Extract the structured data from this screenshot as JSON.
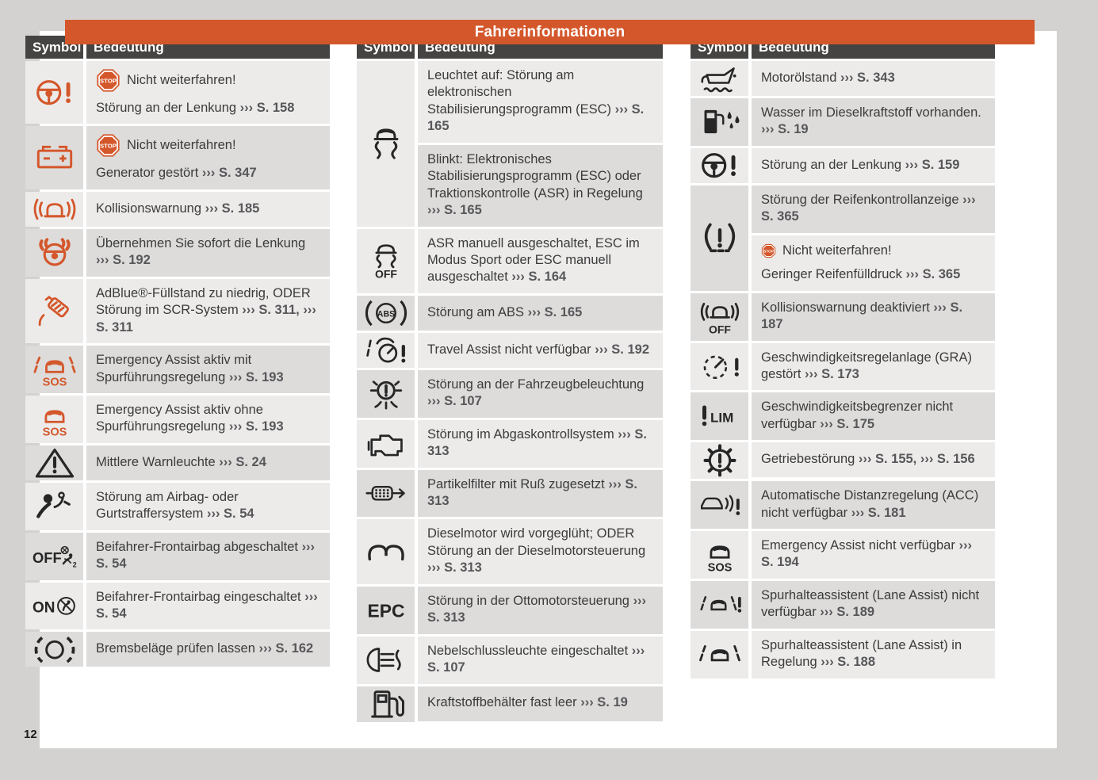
{
  "window": {
    "title": "Fahrerinformationen",
    "page_number": "12"
  },
  "colors": {
    "accent_orange": "#d4572b",
    "header_gray": "#454443",
    "row_light": "#ecebea",
    "row_dark": "#dddcdb",
    "text": "#3b3b3b",
    "reference_gray": "#57575a",
    "page_bg": "#ffffff",
    "canvas_bg": "#d3d2d0"
  },
  "table_header": {
    "symbol": "Symbol",
    "meaning": "Bedeutung"
  },
  "icon_labels": {
    "stop": "STOP",
    "sos": "SOS",
    "off": "OFF",
    "on": "ON",
    "abs": "ABS",
    "epc": "EPC",
    "lim": "LIM",
    "two": "2"
  },
  "columns": [
    {
      "groups": [
        {
          "icon": "steering-wheel-warning-icon",
          "color": "orange",
          "cells": [
            {
              "paras": [
                [
                  {
                    "k": "stop",
                    "t": "STOP"
                  },
                  {
                    "k": "t",
                    "t": "Nicht weiterfahren!"
                  }
                ],
                [
                  {
                    "k": "t",
                    "t": "Störung an der Lenkung "
                  },
                  {
                    "k": "r",
                    "t": "››› S. 158"
                  }
                ]
              ]
            }
          ]
        },
        {
          "icon": "battery-icon",
          "color": "orange",
          "cells": [
            {
              "paras": [
                [
                  {
                    "k": "stop",
                    "t": "STOP"
                  },
                  {
                    "k": "t",
                    "t": "Nicht weiterfahren!"
                  }
                ],
                [
                  {
                    "k": "t",
                    "t": "Generator gestört "
                  },
                  {
                    "k": "r",
                    "t": "››› S. 347"
                  }
                ]
              ]
            }
          ]
        },
        {
          "icon": "collision-warning-icon",
          "color": "orange",
          "cells": [
            {
              "paras": [
                [
                  {
                    "k": "t",
                    "t": "Kollisionswarnung "
                  },
                  {
                    "k": "r",
                    "t": "››› S. 185"
                  }
                ]
              ]
            }
          ]
        },
        {
          "icon": "hands-on-steering-wheel-icon",
          "color": "orange",
          "cells": [
            {
              "paras": [
                [
                  {
                    "k": "t",
                    "t": "Übernehmen Sie sofort die Lenkung "
                  },
                  {
                    "k": "r",
                    "t": "››› S. 192"
                  }
                ]
              ]
            }
          ]
        },
        {
          "icon": "adblue-refill-icon",
          "color": "orange",
          "cells": [
            {
              "paras": [
                [
                  {
                    "k": "t",
                    "t": "AdBlue®-Füllstand zu niedrig, ODER Störung im SCR-System "
                  },
                  {
                    "k": "r",
                    "t": "››› S. 311, ››› S. 311"
                  }
                ]
              ]
            }
          ]
        },
        {
          "icon": "emergency-assist-lane-icon",
          "color": "orange",
          "cells": [
            {
              "paras": [
                [
                  {
                    "k": "t",
                    "t": "Emergency Assist aktiv mit Spurführungsregelung "
                  },
                  {
                    "k": "r",
                    "t": "››› S. 193"
                  }
                ]
              ]
            }
          ]
        },
        {
          "icon": "emergency-assist-sos-icon",
          "color": "orange",
          "cells": [
            {
              "paras": [
                [
                  {
                    "k": "t",
                    "t": "Emergency Assist aktiv ohne Spurführungsregelung "
                  },
                  {
                    "k": "r",
                    "t": "››› S. 193"
                  }
                ]
              ]
            }
          ]
        },
        {
          "icon": "warning-triangle-icon",
          "color": "black",
          "cells": [
            {
              "paras": [
                [
                  {
                    "k": "t",
                    "t": "Mittlere Warnleuchte "
                  },
                  {
                    "k": "r",
                    "t": "››› S. 24"
                  }
                ]
              ]
            }
          ]
        },
        {
          "icon": "airbag-warning-icon",
          "color": "black",
          "cells": [
            {
              "paras": [
                [
                  {
                    "k": "t",
                    "t": "Störung am Airbag- oder Gurtstraffersystem "
                  },
                  {
                    "k": "r",
                    "t": "››› S. 54"
                  }
                ]
              ]
            }
          ]
        },
        {
          "icon": "passenger-airbag-off-icon",
          "color": "black",
          "cells": [
            {
              "paras": [
                [
                  {
                    "k": "t",
                    "t": "Beifahrer-Frontairbag abgeschaltet "
                  },
                  {
                    "k": "r",
                    "t": "››› S. 54"
                  }
                ]
              ]
            }
          ]
        },
        {
          "icon": "passenger-airbag-on-icon",
          "color": "black",
          "cells": [
            {
              "paras": [
                [
                  {
                    "k": "t",
                    "t": "Beifahrer-Frontairbag eingeschaltet "
                  },
                  {
                    "k": "r",
                    "t": "››› S. 54"
                  }
                ]
              ]
            }
          ]
        },
        {
          "icon": "brake-pads-icon",
          "color": "black",
          "cells": [
            {
              "paras": [
                [
                  {
                    "k": "t",
                    "t": "Bremsbeläge prüfen lassen "
                  },
                  {
                    "k": "r",
                    "t": "››› S. 162"
                  }
                ]
              ]
            }
          ]
        }
      ]
    },
    {
      "groups": [
        {
          "icon": "esc-icon",
          "color": "black",
          "cells": [
            {
              "paras": [
                [
                  {
                    "k": "t",
                    "t": "Leuchtet auf: Störung am elektronischen Stabilisierungsprogramm (ESC) "
                  },
                  {
                    "k": "r",
                    "t": "››› S. 165"
                  }
                ]
              ]
            },
            {
              "paras": [
                [
                  {
                    "k": "t",
                    "t": "Blinkt: Elektronisches Stabilisierungsprogramm (ESC) oder Traktionskontrolle (ASR) in Regelung "
                  },
                  {
                    "k": "r",
                    "t": "››› S. 165"
                  }
                ]
              ]
            }
          ]
        },
        {
          "icon": "esc-off-icon",
          "color": "black",
          "cells": [
            {
              "paras": [
                [
                  {
                    "k": "t",
                    "t": "ASR manuell ausgeschaltet, ESC im Modus Sport oder ESC manuell ausgeschaltet "
                  },
                  {
                    "k": "r",
                    "t": "››› S. 164"
                  }
                ]
              ]
            }
          ]
        },
        {
          "icon": "abs-icon",
          "color": "black",
          "cells": [
            {
              "paras": [
                [
                  {
                    "k": "t",
                    "t": "Störung am ABS "
                  },
                  {
                    "k": "r",
                    "t": "››› S. 165"
                  }
                ]
              ]
            }
          ]
        },
        {
          "icon": "travel-assist-icon",
          "color": "black",
          "cells": [
            {
              "paras": [
                [
                  {
                    "k": "t",
                    "t": "Travel Assist nicht verfügbar "
                  },
                  {
                    "k": "r",
                    "t": "››› S. 192"
                  }
                ]
              ]
            }
          ]
        },
        {
          "icon": "light-warning-icon",
          "color": "black",
          "cells": [
            {
              "paras": [
                [
                  {
                    "k": "t",
                    "t": "Störung an der Fahrzeugbeleuchtung "
                  },
                  {
                    "k": "r",
                    "t": "››› S. 107"
                  }
                ]
              ]
            }
          ]
        },
        {
          "icon": "check-engine-icon",
          "color": "black",
          "cells": [
            {
              "paras": [
                [
                  {
                    "k": "t",
                    "t": "Störung im Abgaskontrollsystem "
                  },
                  {
                    "k": "r",
                    "t": "››› S. 313"
                  }
                ]
              ]
            }
          ]
        },
        {
          "icon": "particulate-filter-icon",
          "color": "black",
          "cells": [
            {
              "paras": [
                [
                  {
                    "k": "t",
                    "t": "Partikelfilter mit Ruß zugesetzt "
                  },
                  {
                    "k": "r",
                    "t": "››› S. 313"
                  }
                ]
              ]
            }
          ]
        },
        {
          "icon": "glow-plug-icon",
          "color": "black",
          "cells": [
            {
              "paras": [
                [
                  {
                    "k": "t",
                    "t": "Dieselmotor wird vorgeglüht; ODER Störung an der Dieselmotorsteuerung "
                  },
                  {
                    "k": "r",
                    "t": "››› S. 313"
                  }
                ]
              ]
            }
          ]
        },
        {
          "icon": "epc-icon",
          "color": "black",
          "cells": [
            {
              "paras": [
                [
                  {
                    "k": "t",
                    "t": "Störung in der Ottomotorsteuerung "
                  },
                  {
                    "k": "r",
                    "t": "››› S. 313"
                  }
                ]
              ]
            }
          ]
        },
        {
          "icon": "rear-fog-light-icon",
          "color": "black",
          "cells": [
            {
              "paras": [
                [
                  {
                    "k": "t",
                    "t": "Nebelschlussleuchte eingeschaltet "
                  },
                  {
                    "k": "r",
                    "t": "››› S. 107"
                  }
                ]
              ]
            }
          ]
        },
        {
          "icon": "fuel-pump-icon",
          "color": "black",
          "cells": [
            {
              "paras": [
                [
                  {
                    "k": "t",
                    "t": "Kraftstoffbehälter fast leer "
                  },
                  {
                    "k": "r",
                    "t": "››› S. 19"
                  }
                ]
              ]
            }
          ]
        }
      ]
    },
    {
      "groups": [
        {
          "icon": "engine-oil-icon",
          "color": "black",
          "cells": [
            {
              "paras": [
                [
                  {
                    "k": "t",
                    "t": "Motorölstand "
                  },
                  {
                    "k": "r",
                    "t": "››› S. 343"
                  }
                ]
              ]
            }
          ]
        },
        {
          "icon": "water-in-fuel-icon",
          "color": "black",
          "cells": [
            {
              "paras": [
                [
                  {
                    "k": "t",
                    "t": "Wasser im Dieselkraftstoff vorhanden. "
                  },
                  {
                    "k": "r",
                    "t": "››› S. 19"
                  }
                ]
              ]
            }
          ]
        },
        {
          "icon": "steering-wheel-warning-icon",
          "color": "black",
          "cells": [
            {
              "paras": [
                [
                  {
                    "k": "t",
                    "t": "Störung an der Lenkung "
                  },
                  {
                    "k": "r",
                    "t": "››› S. 159"
                  }
                ]
              ]
            }
          ]
        },
        {
          "icon": "tpms-icon",
          "color": "black",
          "cells": [
            {
              "paras": [
                [
                  {
                    "k": "t",
                    "t": "Störung der Reifenkontrollanzeige "
                  },
                  {
                    "k": "r",
                    "t": "››› S. 365"
                  }
                ]
              ]
            },
            {
              "paras": [
                [
                  {
                    "k": "stop-sm",
                    "t": "STOP"
                  },
                  {
                    "k": "t",
                    "t": "Nicht weiterfahren!"
                  }
                ],
                [
                  {
                    "k": "t",
                    "t": "Geringer Reifenfülldruck "
                  },
                  {
                    "k": "r",
                    "t": "››› S. 365"
                  }
                ]
              ]
            }
          ]
        },
        {
          "icon": "collision-warning-off-icon",
          "color": "black",
          "cells": [
            {
              "paras": [
                [
                  {
                    "k": "t",
                    "t": "Kollisionswarnung deaktiviert "
                  },
                  {
                    "k": "r",
                    "t": "››› S. 187"
                  }
                ]
              ]
            }
          ]
        },
        {
          "icon": "cruise-control-warning-icon",
          "color": "black",
          "cells": [
            {
              "paras": [
                [
                  {
                    "k": "t",
                    "t": "Geschwindigkeitsregelanlage (GRA) gestört "
                  },
                  {
                    "k": "r",
                    "t": "››› S. 173"
                  }
                ]
              ]
            }
          ]
        },
        {
          "icon": "speed-limiter-icon",
          "color": "black",
          "cells": [
            {
              "paras": [
                [
                  {
                    "k": "t",
                    "t": "Geschwindigkeitsbegrenzer nicht verfügbar "
                  },
                  {
                    "k": "r",
                    "t": "››› S. 175"
                  }
                ]
              ]
            }
          ]
        },
        {
          "icon": "gearbox-warning-icon",
          "color": "black",
          "cells": [
            {
              "paras": [
                [
                  {
                    "k": "t",
                    "t": "Getriebestörung "
                  },
                  {
                    "k": "r",
                    "t": "››› S. 155, ››› S. 156"
                  }
                ]
              ]
            }
          ]
        },
        {
          "icon": "acc-warning-icon",
          "color": "black",
          "cells": [
            {
              "paras": [
                [
                  {
                    "k": "t",
                    "t": "Automatische Distanzregelung (ACC) nicht verfügbar "
                  },
                  {
                    "k": "r",
                    "t": "››› S. 181"
                  }
                ]
              ]
            }
          ]
        },
        {
          "icon": "emergency-assist-sos-icon",
          "color": "black",
          "cells": [
            {
              "paras": [
                [
                  {
                    "k": "t",
                    "t": "Emergency Assist nicht verfügbar "
                  },
                  {
                    "k": "r",
                    "t": "››› S. 194"
                  }
                ]
              ]
            }
          ]
        },
        {
          "icon": "lane-assist-warning-icon",
          "color": "black",
          "cells": [
            {
              "paras": [
                [
                  {
                    "k": "t",
                    "t": "Spurhalteassistent (Lane Assist) nicht verfügbar "
                  },
                  {
                    "k": "r",
                    "t": "››› S. 189"
                  }
                ]
              ]
            }
          ]
        },
        {
          "icon": "lane-assist-icon",
          "color": "black",
          "cells": [
            {
              "paras": [
                [
                  {
                    "k": "t",
                    "t": "Spurhalteassistent (Lane Assist) in Regelung "
                  },
                  {
                    "k": "r",
                    "t": "››› S. 188"
                  }
                ]
              ]
            }
          ]
        }
      ]
    }
  ]
}
